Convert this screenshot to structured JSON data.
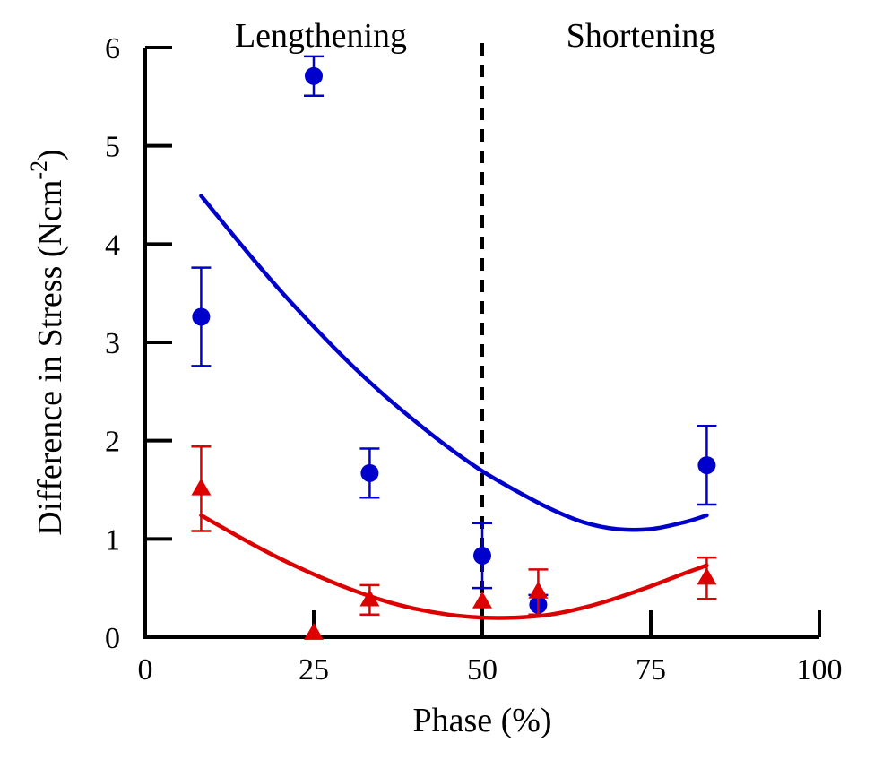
{
  "chart_data": {
    "type": "scatter",
    "title": "",
    "xlabel": "Phase (%)",
    "ylabel_main": "Difference in Stress (Ncm",
    "ylabel_sup": "-2",
    "ylabel_close": ")",
    "xlim": [
      0,
      100
    ],
    "ylim": [
      0,
      6
    ],
    "xticks": [
      0,
      25,
      50,
      75,
      100
    ],
    "yticks": [
      0,
      1,
      2,
      3,
      4,
      5,
      6
    ],
    "xtick_labels": [
      "0",
      "25",
      "50",
      "75",
      "100"
    ],
    "ytick_labels": [
      "0",
      "1",
      "2",
      "3",
      "4",
      "5",
      "6"
    ],
    "regions": [
      {
        "label": "Lengthening"
      },
      {
        "label": "Shortening"
      }
    ],
    "divider_x": 50,
    "series": [
      {
        "name": "circles",
        "marker": "circle",
        "color": "#0000cc",
        "points": [
          {
            "x": 8.3,
            "y": 3.26,
            "err": 0.5
          },
          {
            "x": 25,
            "y": 5.71,
            "err": 0.2
          },
          {
            "x": 33.3,
            "y": 1.67,
            "err": 0.25
          },
          {
            "x": 50,
            "y": 0.83,
            "err": 0.33
          },
          {
            "x": 58.3,
            "y": 0.33,
            "err": 0.1
          },
          {
            "x": 83.3,
            "y": 1.75,
            "err": 0.4
          }
        ],
        "fit": {
          "x": [
            8.3,
            15,
            20,
            25,
            30,
            35,
            40,
            45,
            50,
            55,
            60,
            65,
            70,
            75,
            80,
            83.3
          ],
          "y": [
            4.49,
            3.93,
            3.53,
            3.16,
            2.81,
            2.49,
            2.2,
            1.93,
            1.69,
            1.49,
            1.31,
            1.17,
            1.1,
            1.1,
            1.17,
            1.24
          ]
        }
      },
      {
        "name": "triangles",
        "marker": "triangle",
        "color": "#dd0000",
        "points": [
          {
            "x": 8.3,
            "y": 1.51,
            "err": 0.43
          },
          {
            "x": 25,
            "y": 0.04,
            "err": 0
          },
          {
            "x": 33.3,
            "y": 0.38,
            "err": 0.15
          },
          {
            "x": 50,
            "y": 0.36,
            "err": 0
          },
          {
            "x": 58.3,
            "y": 0.46,
            "err": 0.23
          },
          {
            "x": 83.3,
            "y": 0.6,
            "err": 0.21
          }
        ],
        "fit": {
          "x": [
            8.3,
            15,
            20,
            25,
            30,
            35,
            40,
            45,
            50,
            55,
            60,
            65,
            70,
            75,
            80,
            83.3
          ],
          "y": [
            1.24,
            0.98,
            0.8,
            0.64,
            0.5,
            0.38,
            0.29,
            0.23,
            0.2,
            0.2,
            0.23,
            0.3,
            0.4,
            0.52,
            0.65,
            0.73
          ]
        }
      }
    ]
  }
}
